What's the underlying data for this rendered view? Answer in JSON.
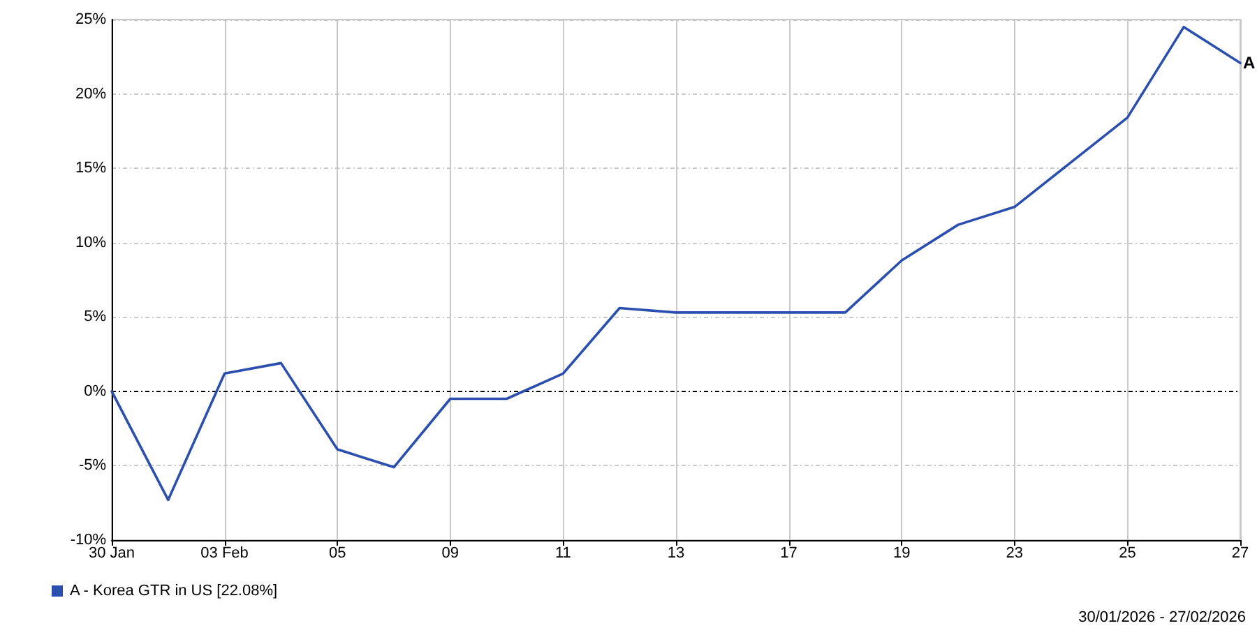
{
  "chart_data": {
    "type": "line",
    "categories": [
      "30 Jan",
      null,
      "03 Feb",
      null,
      "05",
      null,
      "09",
      null,
      "11",
      null,
      "13",
      null,
      "17",
      null,
      "19",
      null,
      "23",
      null,
      "25",
      null,
      "27"
    ],
    "series": [
      {
        "name": "A - Korea GTR in US [22.08%]",
        "color": "#2b4fae",
        "values": [
          0,
          -7.3,
          1.2,
          1.9,
          -3.9,
          -5.1,
          -0.5,
          -0.5,
          1.2,
          5.6,
          5.3,
          5.3,
          5.3,
          5.3,
          8.8,
          11.2,
          12.4,
          15.4,
          18.4,
          24.5,
          22.08
        ]
      }
    ],
    "ylim": [
      -10,
      25
    ],
    "yticks": [
      {
        "value": -10,
        "label": "-10%"
      },
      {
        "value": -5,
        "label": "-5%"
      },
      {
        "value": 0,
        "label": "0%"
      },
      {
        "value": 5,
        "label": "5%"
      },
      {
        "value": 10,
        "label": "10%"
      },
      {
        "value": 15,
        "label": "15%"
      },
      {
        "value": 20,
        "label": "20%"
      },
      {
        "value": 25,
        "label": "25%"
      }
    ],
    "grid": true,
    "legend": "bottom left",
    "marker": "none",
    "ref_lines": [
      {
        "axis": "y",
        "value": 0,
        "color": "#000000",
        "line_style": "dotted"
      }
    ],
    "annotations": [
      {
        "text": "A",
        "x": "27",
        "y": 22.08
      },
      "30/01/2026 - 27/02/2026"
    ]
  }
}
